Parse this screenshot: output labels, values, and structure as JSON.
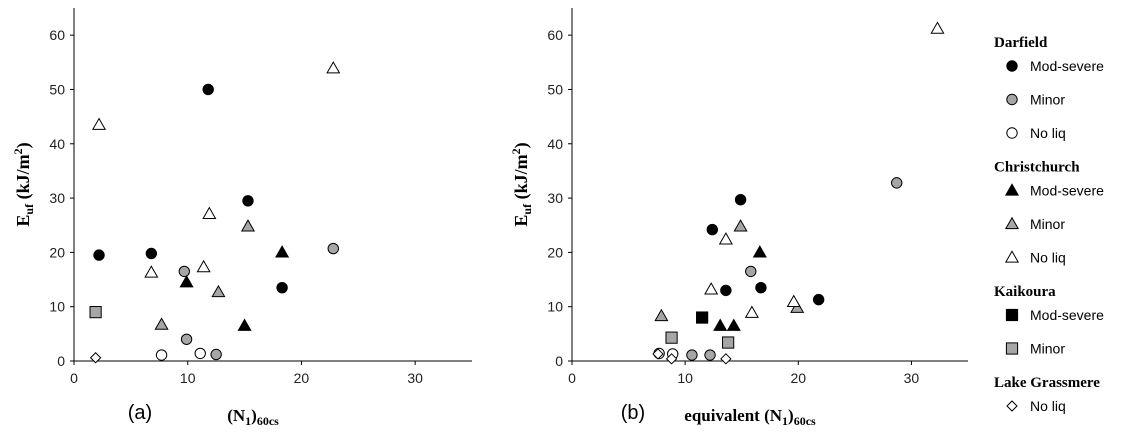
{
  "chart_data": [
    {
      "type": "scatter",
      "panel_label": "(a)",
      "xlabel": "(N1)60cs",
      "ylabel": "Euf (kJ/m2)",
      "xlim": [
        0,
        35
      ],
      "ylim": [
        0,
        65
      ],
      "xticks": [
        0,
        10,
        20,
        30
      ],
      "yticks": [
        0,
        10,
        20,
        30,
        40,
        50,
        60
      ],
      "grid": false,
      "series": [
        {
          "key": "darfield-mod-severe",
          "points": [
            [
              2.2,
              19.5
            ],
            [
              6.8,
              19.8
            ],
            [
              11.8,
              50
            ],
            [
              15.3,
              29.5
            ],
            [
              18.3,
              13.5
            ]
          ]
        },
        {
          "key": "darfield-minor",
          "points": [
            [
              9.7,
              16.5
            ],
            [
              9.9,
              4.0
            ],
            [
              12.5,
              1.2
            ],
            [
              22.8,
              20.7
            ]
          ]
        },
        {
          "key": "darfield-no-liq",
          "points": [
            [
              7.7,
              1.1
            ],
            [
              11.1,
              1.4
            ]
          ]
        },
        {
          "key": "christchurch-mod-severe",
          "points": [
            [
              9.9,
              14.5
            ],
            [
              15.0,
              6.5
            ],
            [
              18.3,
              20.0
            ]
          ]
        },
        {
          "key": "christchurch-minor",
          "points": [
            [
              7.7,
              6.7
            ],
            [
              12.7,
              12.7
            ],
            [
              15.3,
              24.8
            ]
          ]
        },
        {
          "key": "christchurch-no-liq",
          "points": [
            [
              2.2,
              43.5
            ],
            [
              6.8,
              16.3
            ],
            [
              11.4,
              17.3
            ],
            [
              11.9,
              27.1
            ],
            [
              22.8,
              53.9
            ]
          ]
        },
        {
          "key": "kaikoura-mod-severe",
          "points": []
        },
        {
          "key": "kaikoura-minor",
          "points": [
            [
              1.9,
              9.0
            ]
          ]
        },
        {
          "key": "lake-grassmere-no-liq",
          "points": [
            [
              1.9,
              0.6
            ]
          ]
        }
      ]
    },
    {
      "type": "scatter",
      "panel_label": "(b)",
      "xlabel": "equivalent (N1)60cs",
      "ylabel": "Euf (kJ/m2)",
      "xlim": [
        0,
        35
      ],
      "ylim": [
        0,
        65
      ],
      "xticks": [
        0,
        10,
        20,
        30
      ],
      "yticks": [
        0,
        10,
        20,
        30,
        40,
        50,
        60
      ],
      "grid": false,
      "series": [
        {
          "key": "darfield-mod-severe",
          "points": [
            [
              12.4,
              24.2
            ],
            [
              13.6,
              13.0
            ],
            [
              14.9,
              29.7
            ],
            [
              16.7,
              13.5
            ],
            [
              21.8,
              11.3
            ]
          ]
        },
        {
          "key": "darfield-minor",
          "points": [
            [
              10.6,
              1.1
            ],
            [
              12.2,
              1.1
            ],
            [
              15.8,
              16.5
            ],
            [
              28.7,
              32.8
            ]
          ]
        },
        {
          "key": "darfield-no-liq",
          "points": [
            [
              7.7,
              1.4
            ],
            [
              8.9,
              1.3
            ]
          ]
        },
        {
          "key": "christchurch-mod-severe",
          "points": [
            [
              13.1,
              6.5
            ],
            [
              14.3,
              6.5
            ],
            [
              16.6,
              20.0
            ]
          ]
        },
        {
          "key": "christchurch-minor",
          "points": [
            [
              7.9,
              8.3
            ],
            [
              14.9,
              24.8
            ],
            [
              19.9,
              9.8
            ]
          ]
        },
        {
          "key": "christchurch-no-liq",
          "points": [
            [
              12.3,
              13.2
            ],
            [
              13.6,
              22.4
            ],
            [
              15.9,
              8.9
            ],
            [
              19.6,
              10.9
            ],
            [
              32.3,
              61.2
            ]
          ]
        },
        {
          "key": "kaikoura-mod-severe",
          "points": [
            [
              11.5,
              8.0
            ]
          ]
        },
        {
          "key": "kaikoura-minor",
          "points": [
            [
              8.8,
              4.3
            ],
            [
              13.8,
              3.4
            ]
          ]
        },
        {
          "key": "lake-grassmere-no-liq",
          "points": [
            [
              7.6,
              1.3
            ],
            [
              8.8,
              0.4
            ],
            [
              13.6,
              0.4
            ]
          ]
        }
      ]
    }
  ],
  "legend": {
    "groups": [
      {
        "title": "Darfield",
        "items": [
          {
            "key": "darfield-mod-severe",
            "marker": "circle",
            "fill": "#000000",
            "label": "Mod-severe"
          },
          {
            "key": "darfield-minor",
            "marker": "circle",
            "fill": "#a6a6a6",
            "label": "Minor"
          },
          {
            "key": "darfield-no-liq",
            "marker": "circle",
            "fill": "#ffffff",
            "label": "No liq"
          }
        ]
      },
      {
        "title": "Christchurch",
        "items": [
          {
            "key": "christchurch-mod-severe",
            "marker": "triangle",
            "fill": "#000000",
            "label": "Mod-severe"
          },
          {
            "key": "christchurch-minor",
            "marker": "triangle",
            "fill": "#a6a6a6",
            "label": "Minor"
          },
          {
            "key": "christchurch-no-liq",
            "marker": "triangle",
            "fill": "#ffffff",
            "label": "No liq"
          }
        ]
      },
      {
        "title": "Kaikoura",
        "items": [
          {
            "key": "kaikoura-mod-severe",
            "marker": "square",
            "fill": "#000000",
            "label": "Mod-severe"
          },
          {
            "key": "kaikoura-minor",
            "marker": "square",
            "fill": "#a6a6a6",
            "label": "Minor"
          }
        ]
      },
      {
        "title": "Lake Grassmere",
        "items": [
          {
            "key": "lake-grassmere-no-liq",
            "marker": "diamond",
            "fill": "#ffffff",
            "label": "No liq"
          }
        ]
      }
    ]
  }
}
